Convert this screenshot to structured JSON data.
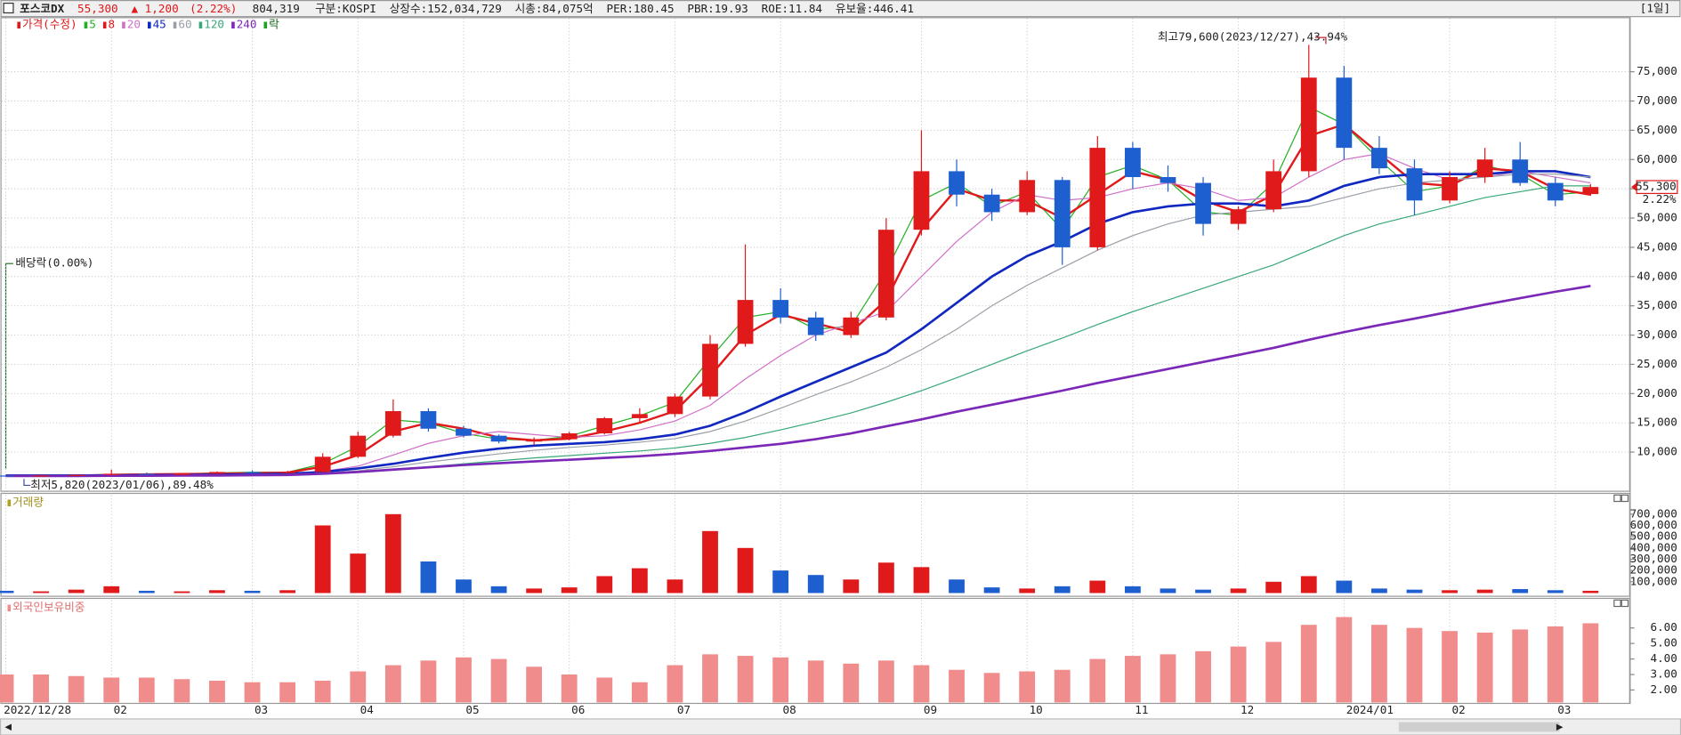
{
  "header": {
    "name": "포스코DX",
    "price": "55,300",
    "change": "▲ 1,200",
    "change_pct": "(2.22%)",
    "volume": "804,319",
    "fields": [
      "구분:KOSPI",
      "상장수:152,034,729",
      "시총:84,075억",
      "PER:180.45",
      "PBR:19.93",
      "ROE:11.84",
      "유보율:446.41"
    ],
    "period": "[1일]"
  },
  "chart_data": [
    {
      "type": "candlestick",
      "ylim": [
        3400,
        84150
      ],
      "yticks": [
        {
          "value": 10000,
          "label": "10,000"
        },
        {
          "value": 15000,
          "label": "15,000"
        },
        {
          "value": 20000,
          "label": "20,000"
        },
        {
          "value": 25000,
          "label": "25,000"
        },
        {
          "value": 30000,
          "label": "30,000"
        },
        {
          "value": 35000,
          "label": "35,000"
        },
        {
          "value": 40000,
          "label": "40,000"
        },
        {
          "value": 45000,
          "label": "45,000"
        },
        {
          "value": 50000,
          "label": "50,000"
        },
        {
          "value": 55000,
          "label": "55,000"
        },
        {
          "value": 60000,
          "label": "60,000"
        },
        {
          "value": 65000,
          "label": "65,000"
        },
        {
          "value": 70000,
          "label": "70,000"
        },
        {
          "value": 75000,
          "label": "75,000"
        }
      ],
      "grid": true,
      "series": [
        {
          "name": "가격(수정)",
          "color": "#e0191b",
          "up_color": "#e0191b",
          "down_color": "#1e5fd0",
          "open": [
            6000,
            5900,
            6000,
            6100,
            6300,
            6200,
            6300,
            6600,
            6500,
            6600,
            9200,
            12800,
            17000,
            14000,
            12800,
            11800,
            12200,
            13200,
            15800,
            16500,
            19500,
            28500,
            36000,
            33000,
            30000,
            33000,
            48000,
            58000,
            54000,
            51000,
            56500,
            45000,
            62000,
            57000,
            56000,
            49000,
            51500,
            58000,
            74000,
            62000,
            58500,
            53000,
            57000,
            60000,
            56000,
            54100
          ],
          "high": [
            6100,
            6100,
            6200,
            7000,
            6500,
            6400,
            6700,
            6900,
            6800,
            9800,
            13500,
            19000,
            17500,
            14500,
            13000,
            12500,
            13500,
            16000,
            17500,
            20000,
            30000,
            45500,
            38000,
            34000,
            34000,
            50000,
            65000,
            60000,
            55000,
            58000,
            57000,
            64000,
            63000,
            59000,
            57000,
            52000,
            60000,
            79600,
            76000,
            64000,
            60000,
            58000,
            62000,
            63000,
            57000,
            55800
          ],
          "low": [
            5820,
            5850,
            5950,
            6000,
            6100,
            6100,
            6200,
            6400,
            6300,
            6500,
            9000,
            12500,
            13500,
            12500,
            11500,
            11200,
            12000,
            13000,
            15000,
            16000,
            19000,
            28000,
            32000,
            29000,
            29500,
            32500,
            47000,
            52000,
            49500,
            50500,
            42000,
            44500,
            55000,
            54500,
            47000,
            48000,
            51000,
            57000,
            60000,
            57500,
            50500,
            52500,
            56000,
            55500,
            52000,
            53800
          ],
          "close": [
            5900,
            6000,
            6100,
            6300,
            6200,
            6300,
            6600,
            6500,
            6600,
            9200,
            12800,
            17000,
            14000,
            12800,
            11800,
            12200,
            13200,
            15800,
            16500,
            19500,
            28500,
            36000,
            33000,
            30000,
            33000,
            48000,
            58000,
            54000,
            51000,
            56500,
            45000,
            62000,
            57000,
            56000,
            49000,
            51500,
            58000,
            74000,
            62000,
            58500,
            53000,
            57000,
            60000,
            56000,
            53000,
            55300
          ]
        },
        {
          "name": "5",
          "color": "#22b022",
          "width": 1,
          "values": [
            5950,
            6000,
            6050,
            6200,
            6250,
            6250,
            6450,
            6550,
            6550,
            8000,
            11000,
            15500,
            15000,
            13200,
            12200,
            12000,
            12700,
            14500,
            16200,
            18500,
            26000,
            33000,
            34000,
            31000,
            31500,
            41000,
            53000,
            56000,
            52000,
            54500,
            48000,
            57000,
            59000,
            56500,
            51000,
            50500,
            56000,
            69000,
            66000,
            60000,
            54500,
            55500,
            59000,
            57500,
            54000,
            54500
          ]
        },
        {
          "name": "8",
          "color": "#e0191b",
          "width": 2,
          "values": [
            6000,
            6000,
            6000,
            6100,
            6200,
            6250,
            6300,
            6400,
            6500,
            7500,
            9500,
            13500,
            15000,
            14000,
            12500,
            12000,
            12300,
            13500,
            15000,
            17000,
            23000,
            30000,
            33500,
            32000,
            30500,
            36000,
            48000,
            55000,
            53000,
            53000,
            50000,
            54000,
            58000,
            56500,
            53000,
            51000,
            54000,
            64000,
            66000,
            61000,
            56000,
            55500,
            58500,
            58000,
            55000,
            54000
          ]
        },
        {
          "name": "20",
          "color": "#d070c8",
          "width": 1,
          "values": [
            6000,
            6000,
            6000,
            6050,
            6100,
            6150,
            6250,
            6300,
            6400,
            6700,
            7600,
            9500,
            11500,
            12800,
            13500,
            13000,
            12500,
            12800,
            13800,
            15300,
            18000,
            22500,
            26500,
            30000,
            32000,
            34000,
            40000,
            46000,
            51000,
            54000,
            53000,
            53500,
            55000,
            56000,
            55000,
            53000,
            53500,
            57000,
            60000,
            61000,
            58500,
            56500,
            57000,
            58000,
            57000,
            56000
          ]
        },
        {
          "name": "45",
          "color": "#1028c0",
          "width": 2.2,
          "values": [
            6000,
            6000,
            6000,
            6000,
            6050,
            6100,
            6150,
            6200,
            6300,
            6600,
            7200,
            8000,
            9000,
            9900,
            10600,
            11100,
            11400,
            11700,
            12200,
            13000,
            14500,
            16800,
            19500,
            22000,
            24500,
            27000,
            31000,
            35500,
            40000,
            43500,
            46000,
            49000,
            51000,
            52000,
            52500,
            52500,
            52000,
            53000,
            55500,
            57000,
            57500,
            57500,
            57500,
            58000,
            58000,
            57000
          ]
        },
        {
          "name": "60",
          "color": "#9aa0a8",
          "width": 1,
          "values": [
            6000,
            6000,
            6000,
            6000,
            6000,
            6050,
            6100,
            6150,
            6200,
            6400,
            6800,
            7500,
            8300,
            9000,
            9700,
            10300,
            10800,
            11200,
            11700,
            12300,
            13500,
            15300,
            17500,
            19800,
            22000,
            24500,
            27500,
            31000,
            35000,
            38500,
            41500,
            44500,
            47000,
            49000,
            50500,
            51000,
            51500,
            52000,
            53500,
            55000,
            56000,
            56500,
            57000,
            57500,
            57500,
            57000
          ]
        },
        {
          "name": "120",
          "color": "#38a878",
          "width": 1,
          "values": [
            6000,
            6000,
            6000,
            6000,
            6000,
            6000,
            6050,
            6100,
            6150,
            6300,
            6600,
            7000,
            7500,
            8000,
            8500,
            9000,
            9400,
            9800,
            10200,
            10700,
            11500,
            12500,
            13800,
            15200,
            16700,
            18500,
            20500,
            22700,
            25000,
            27300,
            29500,
            31800,
            34000,
            36000,
            38000,
            40000,
            42000,
            44500,
            47000,
            49000,
            50500,
            52000,
            53500,
            54500,
            55500,
            55500
          ]
        },
        {
          "name": "240",
          "color": "#7b28b8",
          "width": 2.2,
          "values": [
            5900,
            5900,
            5900,
            5950,
            5950,
            6000,
            6000,
            6050,
            6100,
            6300,
            6600,
            7000,
            7400,
            7800,
            8100,
            8400,
            8700,
            9000,
            9300,
            9700,
            10200,
            10800,
            11400,
            12200,
            13200,
            14400,
            15600,
            16900,
            18100,
            19300,
            20500,
            21800,
            23000,
            24200,
            25400,
            26600,
            27800,
            29200,
            30500,
            31700,
            32800,
            34000,
            35200,
            36300,
            37400,
            38400
          ]
        }
      ],
      "ex_rights_legend": "락",
      "annotations": [
        "최고79,600(2023/12/27),43.94%",
        "최저5,820(2023/01/06),89.48%",
        "배당락(0.00%)"
      ],
      "last_price_label": "55,300",
      "last_change_label": "2.22%"
    },
    {
      "type": "bar",
      "title": "거래량",
      "ylim": [
        0,
        870000
      ],
      "yticks": [
        {
          "value": 100000,
          "label": "100,000"
        },
        {
          "value": 200000,
          "label": "200,000"
        },
        {
          "value": 300000,
          "label": "300,000"
        },
        {
          "value": 400000,
          "label": "400,000"
        },
        {
          "value": 500000,
          "label": "500,000"
        },
        {
          "value": 600000,
          "label": "600,000"
        },
        {
          "value": 700000,
          "label": "700,000"
        }
      ],
      "values": [
        20000,
        15000,
        30000,
        60000,
        20000,
        15000,
        25000,
        20000,
        25000,
        600000,
        350000,
        700000,
        280000,
        120000,
        60000,
        40000,
        50000,
        150000,
        220000,
        120000,
        550000,
        400000,
        200000,
        160000,
        120000,
        270000,
        230000,
        120000,
        50000,
        40000,
        60000,
        110000,
        60000,
        40000,
        30000,
        40000,
        100000,
        150000,
        110000,
        40000,
        30000,
        25000,
        30000,
        35000,
        25000,
        20000
      ]
    },
    {
      "type": "bar",
      "title": "외국인보유비중",
      "color": "#f08c8c",
      "ylim": [
        1.2,
        7.8
      ],
      "yticks": [
        {
          "value": 2,
          "label": "2.00"
        },
        {
          "value": 3,
          "label": "3.00"
        },
        {
          "value": 4,
          "label": "4.00"
        },
        {
          "value": 5,
          "label": "5.00"
        },
        {
          "value": 6,
          "label": "6.00"
        }
      ],
      "categories": [
        "2022/12/28",
        null,
        null,
        "02",
        null,
        null,
        null,
        "03",
        null,
        null,
        "04",
        null,
        null,
        "05",
        null,
        null,
        "06",
        null,
        null,
        "07",
        null,
        null,
        "08",
        null,
        null,
        null,
        "09",
        null,
        null,
        "10",
        null,
        null,
        "11",
        null,
        null,
        "12",
        null,
        null,
        "2024/01",
        null,
        null,
        "02",
        null,
        null,
        "03",
        null
      ],
      "values": [
        3.0,
        3.0,
        2.9,
        2.8,
        2.8,
        2.7,
        2.6,
        2.5,
        2.5,
        2.6,
        3.2,
        3.6,
        3.9,
        4.1,
        4.0,
        3.5,
        3.0,
        2.8,
        2.5,
        3.6,
        4.3,
        4.2,
        4.1,
        3.9,
        3.7,
        3.9,
        3.6,
        3.3,
        3.1,
        3.2,
        3.3,
        4.0,
        4.2,
        4.3,
        4.5,
        4.8,
        5.1,
        6.2,
        6.7,
        6.2,
        6.0,
        5.8,
        5.7,
        5.9,
        6.1,
        6.3
      ]
    }
  ]
}
